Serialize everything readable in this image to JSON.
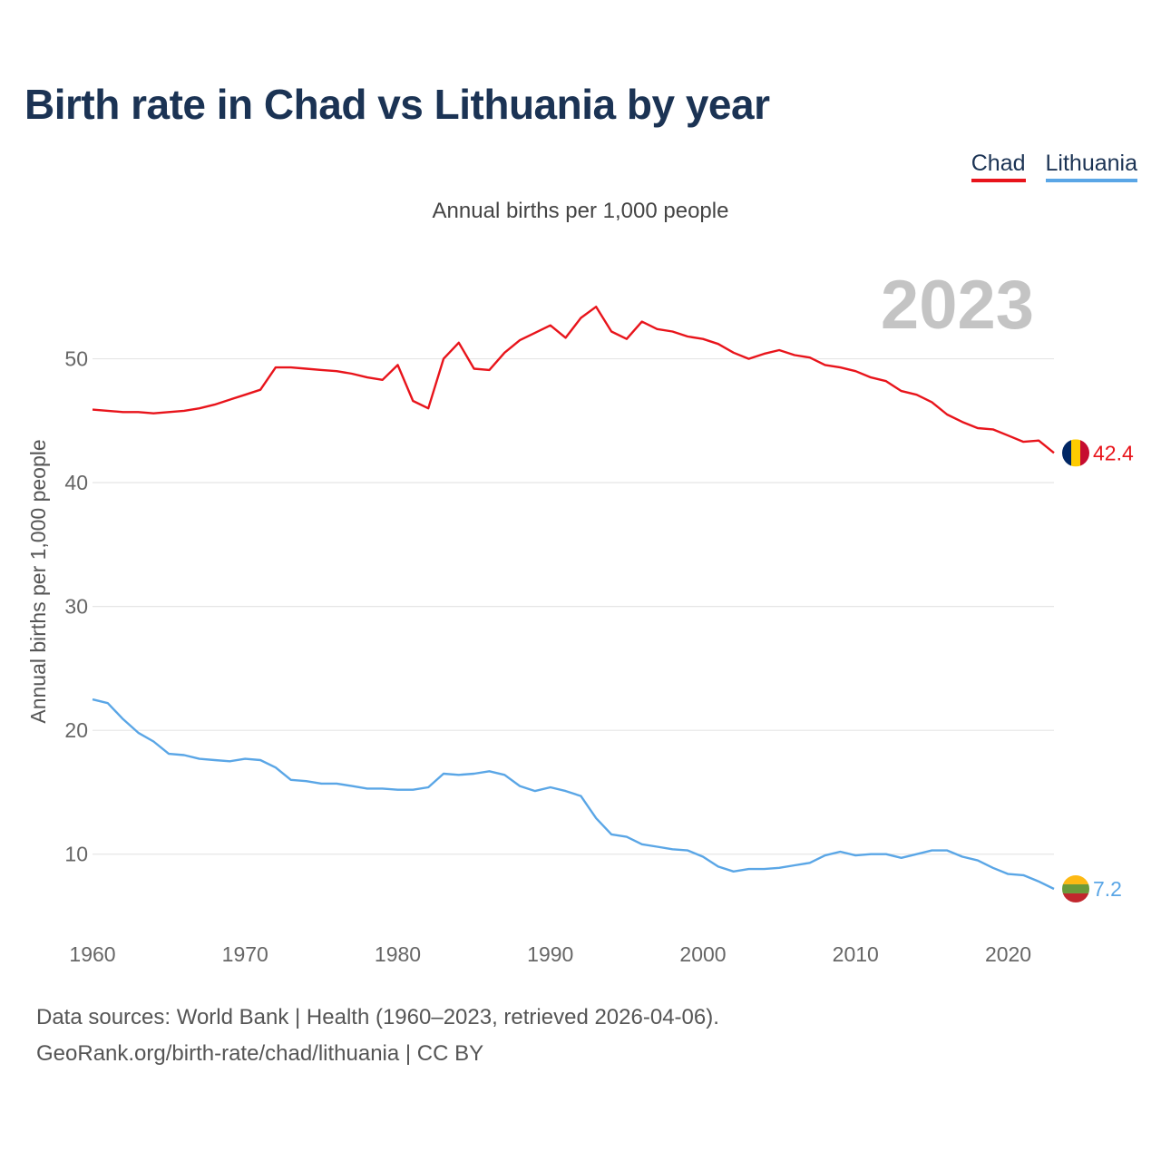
{
  "chart_data": {
    "type": "line",
    "title": "Birth rate in Chad vs Lithuania by year",
    "subtitle": "Annual births per 1,000 people",
    "ylabel": "Annual births per 1,000 people",
    "xlabel": "",
    "xlim": [
      1960,
      2023
    ],
    "ylim": [
      5,
      57
    ],
    "y_ticks": [
      10,
      20,
      30,
      40,
      50
    ],
    "x_ticks": [
      1960,
      1970,
      1980,
      1990,
      2000,
      2010,
      2020
    ],
    "grid": true,
    "legend_position": "top-right",
    "year_label": "2023",
    "x": [
      1960,
      1961,
      1962,
      1963,
      1964,
      1965,
      1966,
      1967,
      1968,
      1969,
      1970,
      1971,
      1972,
      1973,
      1974,
      1975,
      1976,
      1977,
      1978,
      1979,
      1980,
      1981,
      1982,
      1983,
      1984,
      1985,
      1986,
      1987,
      1988,
      1989,
      1990,
      1991,
      1992,
      1993,
      1994,
      1995,
      1996,
      1997,
      1998,
      1999,
      2000,
      2001,
      2002,
      2003,
      2004,
      2005,
      2006,
      2007,
      2008,
      2009,
      2010,
      2011,
      2012,
      2013,
      2014,
      2015,
      2016,
      2017,
      2018,
      2019,
      2020,
      2021,
      2022,
      2023
    ],
    "series": [
      {
        "name": "Chad",
        "color": "#e8141b",
        "end_label": "42.4",
        "values": [
          45.9,
          45.8,
          45.7,
          45.7,
          45.6,
          45.7,
          45.8,
          46.0,
          46.3,
          46.7,
          47.1,
          47.5,
          49.3,
          49.3,
          49.2,
          49.1,
          49.0,
          48.8,
          48.5,
          48.3,
          49.5,
          46.6,
          46.0,
          50.0,
          51.3,
          49.2,
          49.1,
          50.5,
          51.5,
          52.1,
          52.7,
          51.7,
          53.3,
          54.2,
          52.2,
          51.6,
          53.0,
          52.4,
          52.2,
          51.8,
          51.6,
          51.2,
          50.5,
          50.0,
          50.4,
          50.7,
          50.3,
          50.1,
          49.5,
          49.3,
          49.0,
          48.5,
          48.2,
          47.4,
          47.1,
          46.5,
          45.5,
          44.9,
          44.4,
          44.3,
          43.8,
          43.3,
          43.4,
          42.4
        ]
      },
      {
        "name": "Lithuania",
        "color": "#5aa6e6",
        "end_label": "7.2",
        "values": [
          22.5,
          22.2,
          20.9,
          19.8,
          19.1,
          18.1,
          18.0,
          17.7,
          17.6,
          17.5,
          17.7,
          17.6,
          17.0,
          16.0,
          15.9,
          15.7,
          15.7,
          15.5,
          15.3,
          15.3,
          15.2,
          15.2,
          15.4,
          16.5,
          16.4,
          16.5,
          16.7,
          16.4,
          15.5,
          15.1,
          15.4,
          15.1,
          14.7,
          12.9,
          11.6,
          11.4,
          10.8,
          10.6,
          10.4,
          10.3,
          9.8,
          9.0,
          8.6,
          8.8,
          8.8,
          8.9,
          9.1,
          9.3,
          9.9,
          10.2,
          9.9,
          10.0,
          10.0,
          9.7,
          10.0,
          10.3,
          10.3,
          9.8,
          9.5,
          8.9,
          8.4,
          8.3,
          7.8,
          7.2
        ]
      }
    ]
  },
  "legend": [
    {
      "label": "Chad",
      "color": "#e8141b"
    },
    {
      "label": "Lithuania",
      "color": "#5aa6e6"
    }
  ],
  "sources": {
    "line1": "Data sources: World Bank | Health (1960–2023, retrieved 2026-04-06).",
    "line2": "GeoRank.org/birth-rate/chad/lithuania | CC BY"
  },
  "flags": {
    "chad": [
      "#002664",
      "#fecb00",
      "#c60c30"
    ],
    "lithuania": [
      "#fdb913",
      "#6a9a3a",
      "#c1272d"
    ]
  }
}
